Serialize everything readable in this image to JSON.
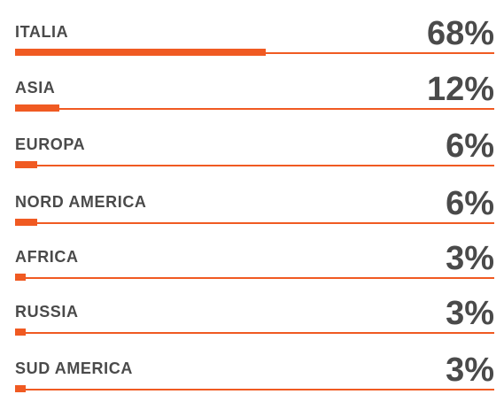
{
  "chart_data": {
    "type": "bar",
    "orientation": "horizontal",
    "categories": [
      "ITALIA",
      "ASIA",
      "EUROPA",
      "NORD AMERICA",
      "AFRICA",
      "RUSSIA",
      "SUD AMERICA"
    ],
    "values": [
      68,
      12,
      6,
      6,
      3,
      3,
      3
    ],
    "value_labels": [
      "68%",
      "12%",
      "6%",
      "6%",
      "3%",
      "3%",
      "3%"
    ],
    "xlim": [
      0,
      130
    ],
    "grid": false,
    "legend": "none"
  },
  "colors": {
    "bar": "#f05a22",
    "text": "#4a4a4a"
  }
}
